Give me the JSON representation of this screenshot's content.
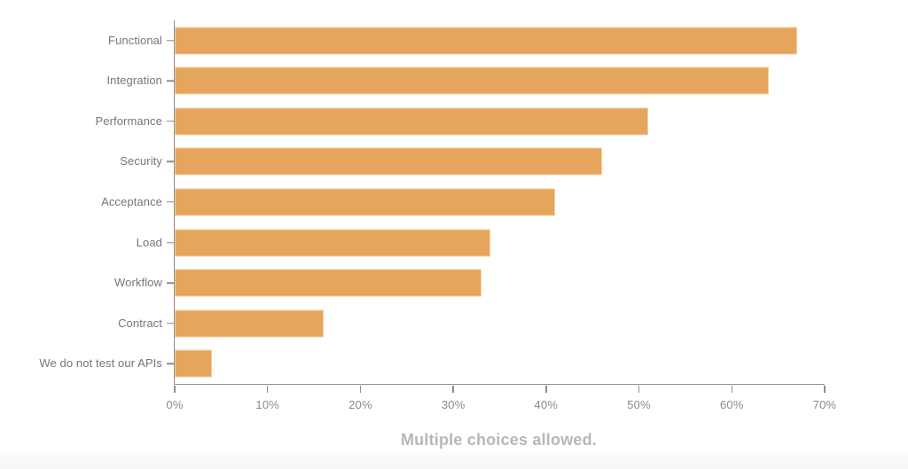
{
  "chart_data": {
    "type": "bar",
    "orientation": "horizontal",
    "title": "",
    "xlabel": "",
    "ylabel": "",
    "categories": [
      "Functional",
      "Integration",
      "Performance",
      "Security",
      "Acceptance",
      "Load",
      "Workflow",
      "Contract",
      "We do not test our APIs"
    ],
    "values": [
      67,
      64,
      51,
      46,
      41,
      34,
      33,
      16,
      4
    ],
    "value_unit": "%",
    "xlim": [
      0,
      70
    ],
    "x_ticks": [
      "0%",
      "10%",
      "20%",
      "30%",
      "40%",
      "50%",
      "60%",
      "70%"
    ],
    "grid": false,
    "legend": false,
    "caption": "Multiple choices allowed."
  },
  "colors": {
    "bar": "#e6a55c",
    "axis": "#8d8d8d",
    "category_label": "#767676",
    "tick_label": "#8a8a8a",
    "caption": "#b7b7b7",
    "background": "#ffffff"
  }
}
